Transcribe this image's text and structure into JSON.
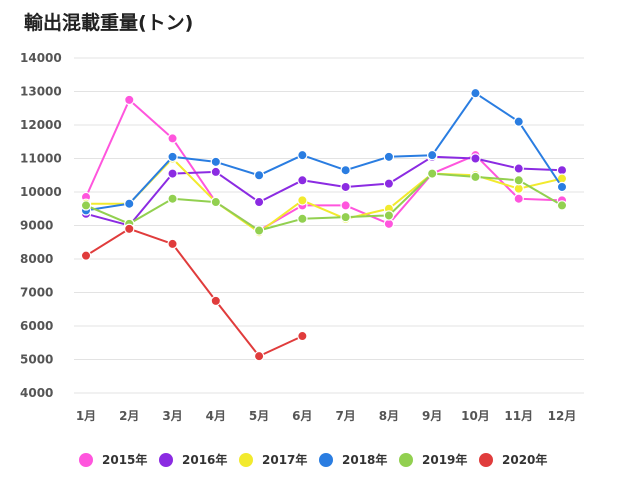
{
  "chart_data": {
    "type": "line",
    "title": "輸出混載重量(トン)",
    "xlabel": "",
    "ylabel": "",
    "categories": [
      "1月",
      "2月",
      "3月",
      "4月",
      "5月",
      "6月",
      "7月",
      "8月",
      "9月",
      "10月",
      "11月",
      "12月"
    ],
    "y_ticks": [
      "4000",
      "5000",
      "6000",
      "7000",
      "8000",
      "9000",
      "10000",
      "11000",
      "12000",
      "13000",
      "14000"
    ],
    "ylim": [
      4000,
      14000
    ],
    "grid": true,
    "legend_position": "bottom",
    "series": [
      {
        "name": "2015年",
        "color": "#ff55dd",
        "values": [
          9850,
          12750,
          11600,
          9700,
          8850,
          9600,
          9600,
          9050,
          10550,
          11100,
          9800,
          9750
        ]
      },
      {
        "name": "2016年",
        "color": "#8b2be2",
        "values": [
          9350,
          9000,
          10550,
          10600,
          9700,
          10350,
          10150,
          10250,
          11050,
          11000,
          10700,
          10650
        ]
      },
      {
        "name": "2017年",
        "color": "#f2ea2e",
        "values": [
          9650,
          9650,
          11000,
          9700,
          8800,
          9750,
          9200,
          9500,
          10550,
          10500,
          10100,
          10400
        ]
      },
      {
        "name": "2018年",
        "color": "#2a7de1",
        "values": [
          9450,
          9650,
          11050,
          10900,
          10500,
          11100,
          10650,
          11050,
          11100,
          12950,
          12100,
          10150
        ]
      },
      {
        "name": "2019年",
        "color": "#92d050",
        "values": [
          9600,
          9050,
          9800,
          9700,
          8850,
          9200,
          9250,
          9300,
          10550,
          10450,
          10350,
          9600
        ]
      },
      {
        "name": "2020年",
        "color": "#e03c3c",
        "values": [
          8100,
          8900,
          8450,
          6750,
          5100,
          5700,
          null,
          null,
          null,
          null,
          null,
          null
        ]
      }
    ]
  }
}
